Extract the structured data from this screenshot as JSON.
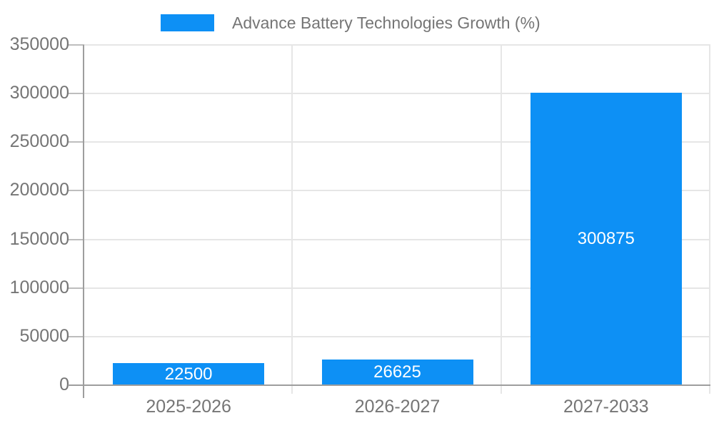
{
  "chart_data": {
    "type": "bar",
    "title": "Advance Battery Technologies Growth (%)",
    "categories": [
      "2025-2026",
      "2026-2027",
      "2027-2033"
    ],
    "values": [
      22500,
      26625,
      300875
    ],
    "bar_labels": [
      "22500",
      "26625",
      "300875"
    ],
    "xlabel": "",
    "ylabel": "",
    "ylim": [
      0,
      350000
    ],
    "ytick_step": 50000,
    "ytick_labels": [
      "0",
      "50000",
      "100000",
      "150000",
      "200000",
      "250000",
      "300000",
      "350000"
    ],
    "grid": true,
    "legend_position": "top",
    "colors": {
      "bar": "#0D90F5",
      "bar_label": "#FFFFFF",
      "axis_text": "#757575",
      "gridline": "#E6E6E6",
      "axis_line": "#9E9E9E",
      "tick": "#BDBDBD",
      "background": "#FFFFFF"
    }
  }
}
